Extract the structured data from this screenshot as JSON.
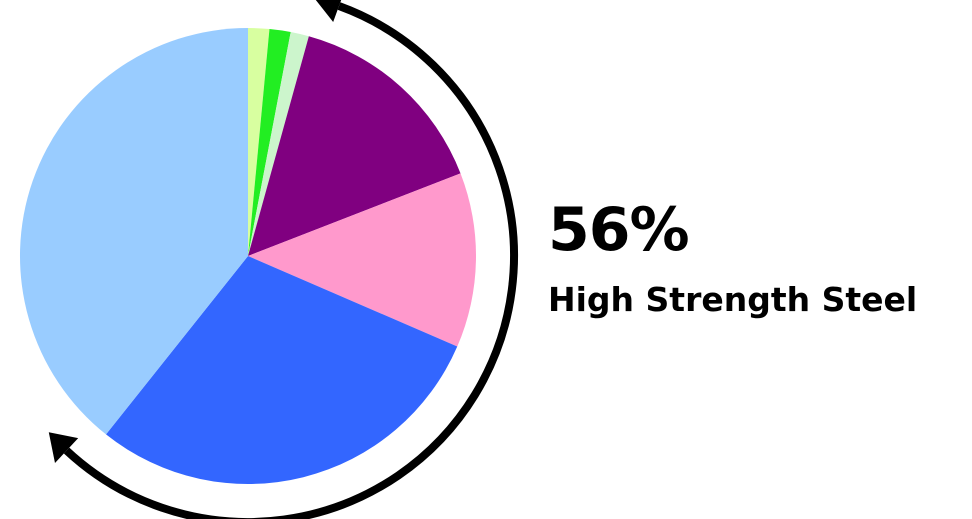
{
  "chart_data": {
    "type": "pie",
    "start": "top",
    "direction": "clockwise",
    "slices": [
      {
        "value": 1.5,
        "color": "#d8ffa0"
      },
      {
        "value": 1.5,
        "color": "#22ee22"
      },
      {
        "value": 1.3,
        "color": "#ccf5cc"
      },
      {
        "value": 14.8,
        "color": "#800080"
      },
      {
        "value": 12.4,
        "color": "#ff99cc"
      },
      {
        "value": 29.2,
        "color": "#3366ff"
      },
      {
        "value": 39.3,
        "color": "#99ccff"
      }
    ],
    "highlight": {
      "value_label": "56%",
      "label": "High Strength Steel",
      "arrow_color": "#000000"
    }
  }
}
